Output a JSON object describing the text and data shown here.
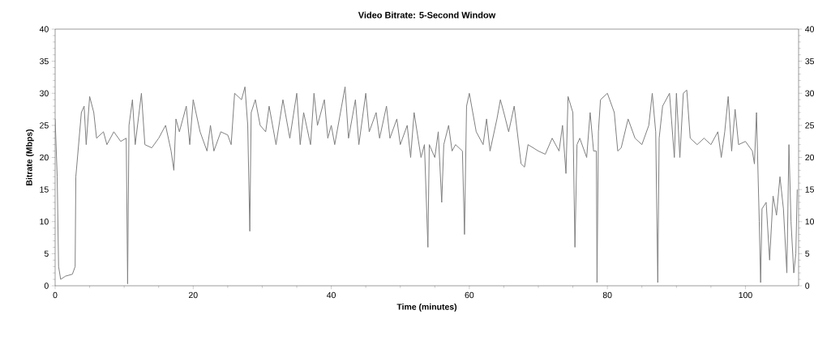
{
  "chart_data": {
    "type": "line",
    "title": "Video Bitrate: 5-Second Window",
    "xlabel": "Time (minutes)",
    "ylabel": "Bitrate (Mbps)",
    "xlim": [
      0,
      107.7
    ],
    "xticks": [
      0,
      20,
      40,
      60,
      80,
      100
    ],
    "ylim": [
      0,
      40
    ],
    "yticks": [
      0,
      5,
      10,
      15,
      20,
      25,
      30,
      35,
      40
    ],
    "y2lim": [
      0,
      40
    ],
    "y2ticks": [
      0,
      5,
      10,
      15,
      20,
      25,
      30,
      35,
      40
    ],
    "grid": false,
    "marker": "none",
    "line_style": "solid",
    "series": [
      {
        "color": "#808080",
        "x": [
          0,
          0.3,
          0.5,
          0.8,
          1.5,
          2.5,
          2.9,
          3.0,
          3.4,
          3.8,
          4.2,
          4.5,
          5.0,
          5.6,
          6.0,
          7,
          7.5,
          8.5,
          9.5,
          10.3,
          10.5,
          10.7,
          11.2,
          11.6,
          12.5,
          13,
          14,
          15,
          16,
          16.8,
          17.2,
          17.5,
          18,
          19,
          19.5,
          20,
          21,
          22,
          22.5,
          23,
          24,
          25,
          25.5,
          26,
          27,
          27.5,
          27.9,
          28.2,
          28.4,
          29,
          29.7,
          30.5,
          31,
          32,
          33,
          34,
          35,
          35.5,
          36,
          37,
          37.5,
          38,
          39,
          39.5,
          40,
          40.5,
          41.5,
          42,
          42.5,
          43.5,
          44,
          45,
          45.5,
          46.5,
          47,
          48,
          48.5,
          49.5,
          50,
          51,
          51.5,
          52,
          53,
          53.5,
          54,
          54.2,
          55,
          55.5,
          56,
          56.3,
          57,
          57.5,
          58,
          59,
          59.3,
          59.6,
          60,
          61,
          62,
          62.5,
          63,
          64,
          64.5,
          65,
          65.7,
          66.5,
          67.5,
          68,
          68.5,
          70,
          71,
          72,
          73,
          73.5,
          74,
          74.3,
          75,
          75.3,
          75.6,
          76,
          77,
          77.5,
          78,
          78.4,
          78.5,
          78.7,
          79,
          80,
          81,
          81.5,
          82,
          83,
          84,
          85,
          86,
          86.5,
          87,
          87.3,
          87.5,
          88,
          89,
          89.7,
          90,
          90.5,
          91,
          91.5,
          92,
          93,
          94,
          95,
          96,
          96.5,
          97,
          97.5,
          98,
          98.5,
          99,
          100,
          101,
          101.3,
          101.6,
          102,
          102.2,
          102.4,
          103,
          103.5,
          104,
          104.5,
          105,
          105.5,
          106,
          106.3,
          106.6,
          107,
          107.3,
          107.5
        ],
        "values": [
          26,
          17,
          3,
          1,
          1.5,
          1.8,
          3,
          17,
          22,
          27,
          28,
          22,
          29.5,
          27,
          23,
          24,
          22,
          24,
          22.5,
          23,
          0.3,
          25,
          29,
          22,
          30,
          22,
          21.5,
          23,
          25,
          21,
          18,
          26,
          24,
          28,
          22,
          29,
          24,
          21,
          25,
          21,
          24,
          23.5,
          22,
          30,
          29,
          31,
          25,
          8.5,
          27,
          29,
          25,
          24,
          28,
          22,
          29,
          23,
          30,
          22,
          27,
          22,
          30,
          25,
          29,
          23,
          25,
          22,
          28,
          31,
          23,
          29,
          22,
          30,
          24,
          27,
          23,
          28,
          23,
          26,
          22,
          25,
          20,
          27,
          20,
          22,
          6,
          22,
          20,
          24,
          13,
          22,
          25,
          21,
          22,
          21,
          8,
          28,
          30,
          24,
          22,
          26,
          21,
          26,
          29,
          27,
          24,
          28,
          19,
          18.5,
          22,
          21,
          20.5,
          23,
          21,
          25,
          17.5,
          29.5,
          27,
          6,
          22,
          23,
          20,
          27,
          21,
          21,
          0.5,
          24,
          29,
          30,
          27,
          21,
          21.5,
          26,
          23,
          22,
          25,
          30,
          24,
          0.5,
          23,
          28,
          30,
          20,
          30,
          20,
          30,
          30.5,
          23,
          22,
          23,
          22,
          24,
          20,
          24,
          29.5,
          21,
          27.5,
          22,
          22.5,
          21,
          19,
          27,
          10,
          0.5,
          12,
          13,
          4,
          14,
          11,
          17,
          12,
          2,
          22,
          10,
          2,
          5,
          15
        ]
      }
    ]
  }
}
